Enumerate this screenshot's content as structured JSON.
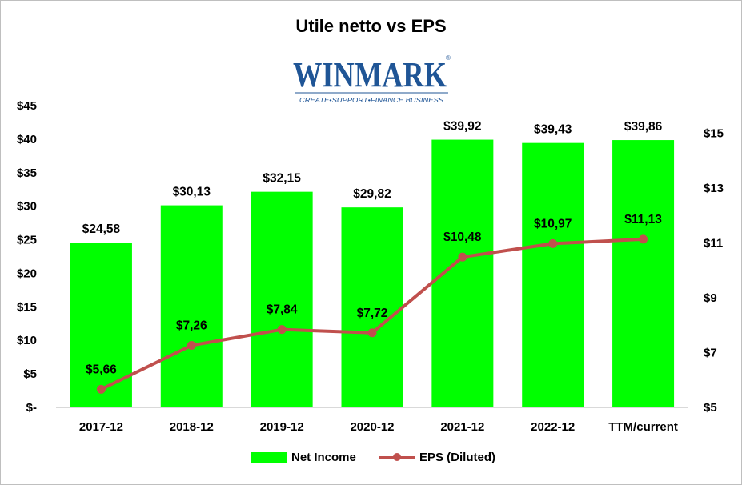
{
  "title": "Utile netto vs EPS",
  "logo": {
    "text": "WINMARK",
    "tagline": "CREATE•SUPPORT•FINANCE BUSINESS",
    "mark": "®",
    "color": "#1f5596"
  },
  "colors": {
    "bars": "#00ff00",
    "line": "#c0504d"
  },
  "chart_data": {
    "type": "bar+line",
    "categories": [
      "2017-12",
      "2018-12",
      "2019-12",
      "2020-12",
      "2021-12",
      "2022-12",
      "TTM/current"
    ],
    "series": [
      {
        "name": "Net Income",
        "type": "bar",
        "axis": "left",
        "values": [
          24.58,
          30.13,
          32.15,
          29.82,
          39.92,
          39.43,
          39.86
        ],
        "labels": [
          "$24,58",
          "$30,13",
          "$32,15",
          "$29,82",
          "$39,92",
          "$39,43",
          "$39,86"
        ]
      },
      {
        "name": "EPS (Diluted)",
        "type": "line",
        "axis": "right",
        "values": [
          5.66,
          7.26,
          7.84,
          7.72,
          10.48,
          10.97,
          11.13
        ],
        "labels": [
          "$5,66",
          "$7,26",
          "$7,84",
          "$7,72",
          "$10,48",
          "$10,97",
          "$11,13"
        ]
      }
    ],
    "y_left": {
      "ylim": [
        0,
        45
      ],
      "ticks": [
        "$-",
        "$5",
        "$10",
        "$15",
        "$20",
        "$25",
        "$30",
        "$35",
        "$40",
        "$45"
      ]
    },
    "y_right": {
      "ylim": [
        5,
        16
      ],
      "tick_values": [
        5,
        7,
        9,
        11,
        13,
        15
      ],
      "ticks": [
        "$5",
        "$7",
        "$9",
        "$11",
        "$13",
        "$15"
      ]
    },
    "legend": "bottom",
    "grid": false
  }
}
